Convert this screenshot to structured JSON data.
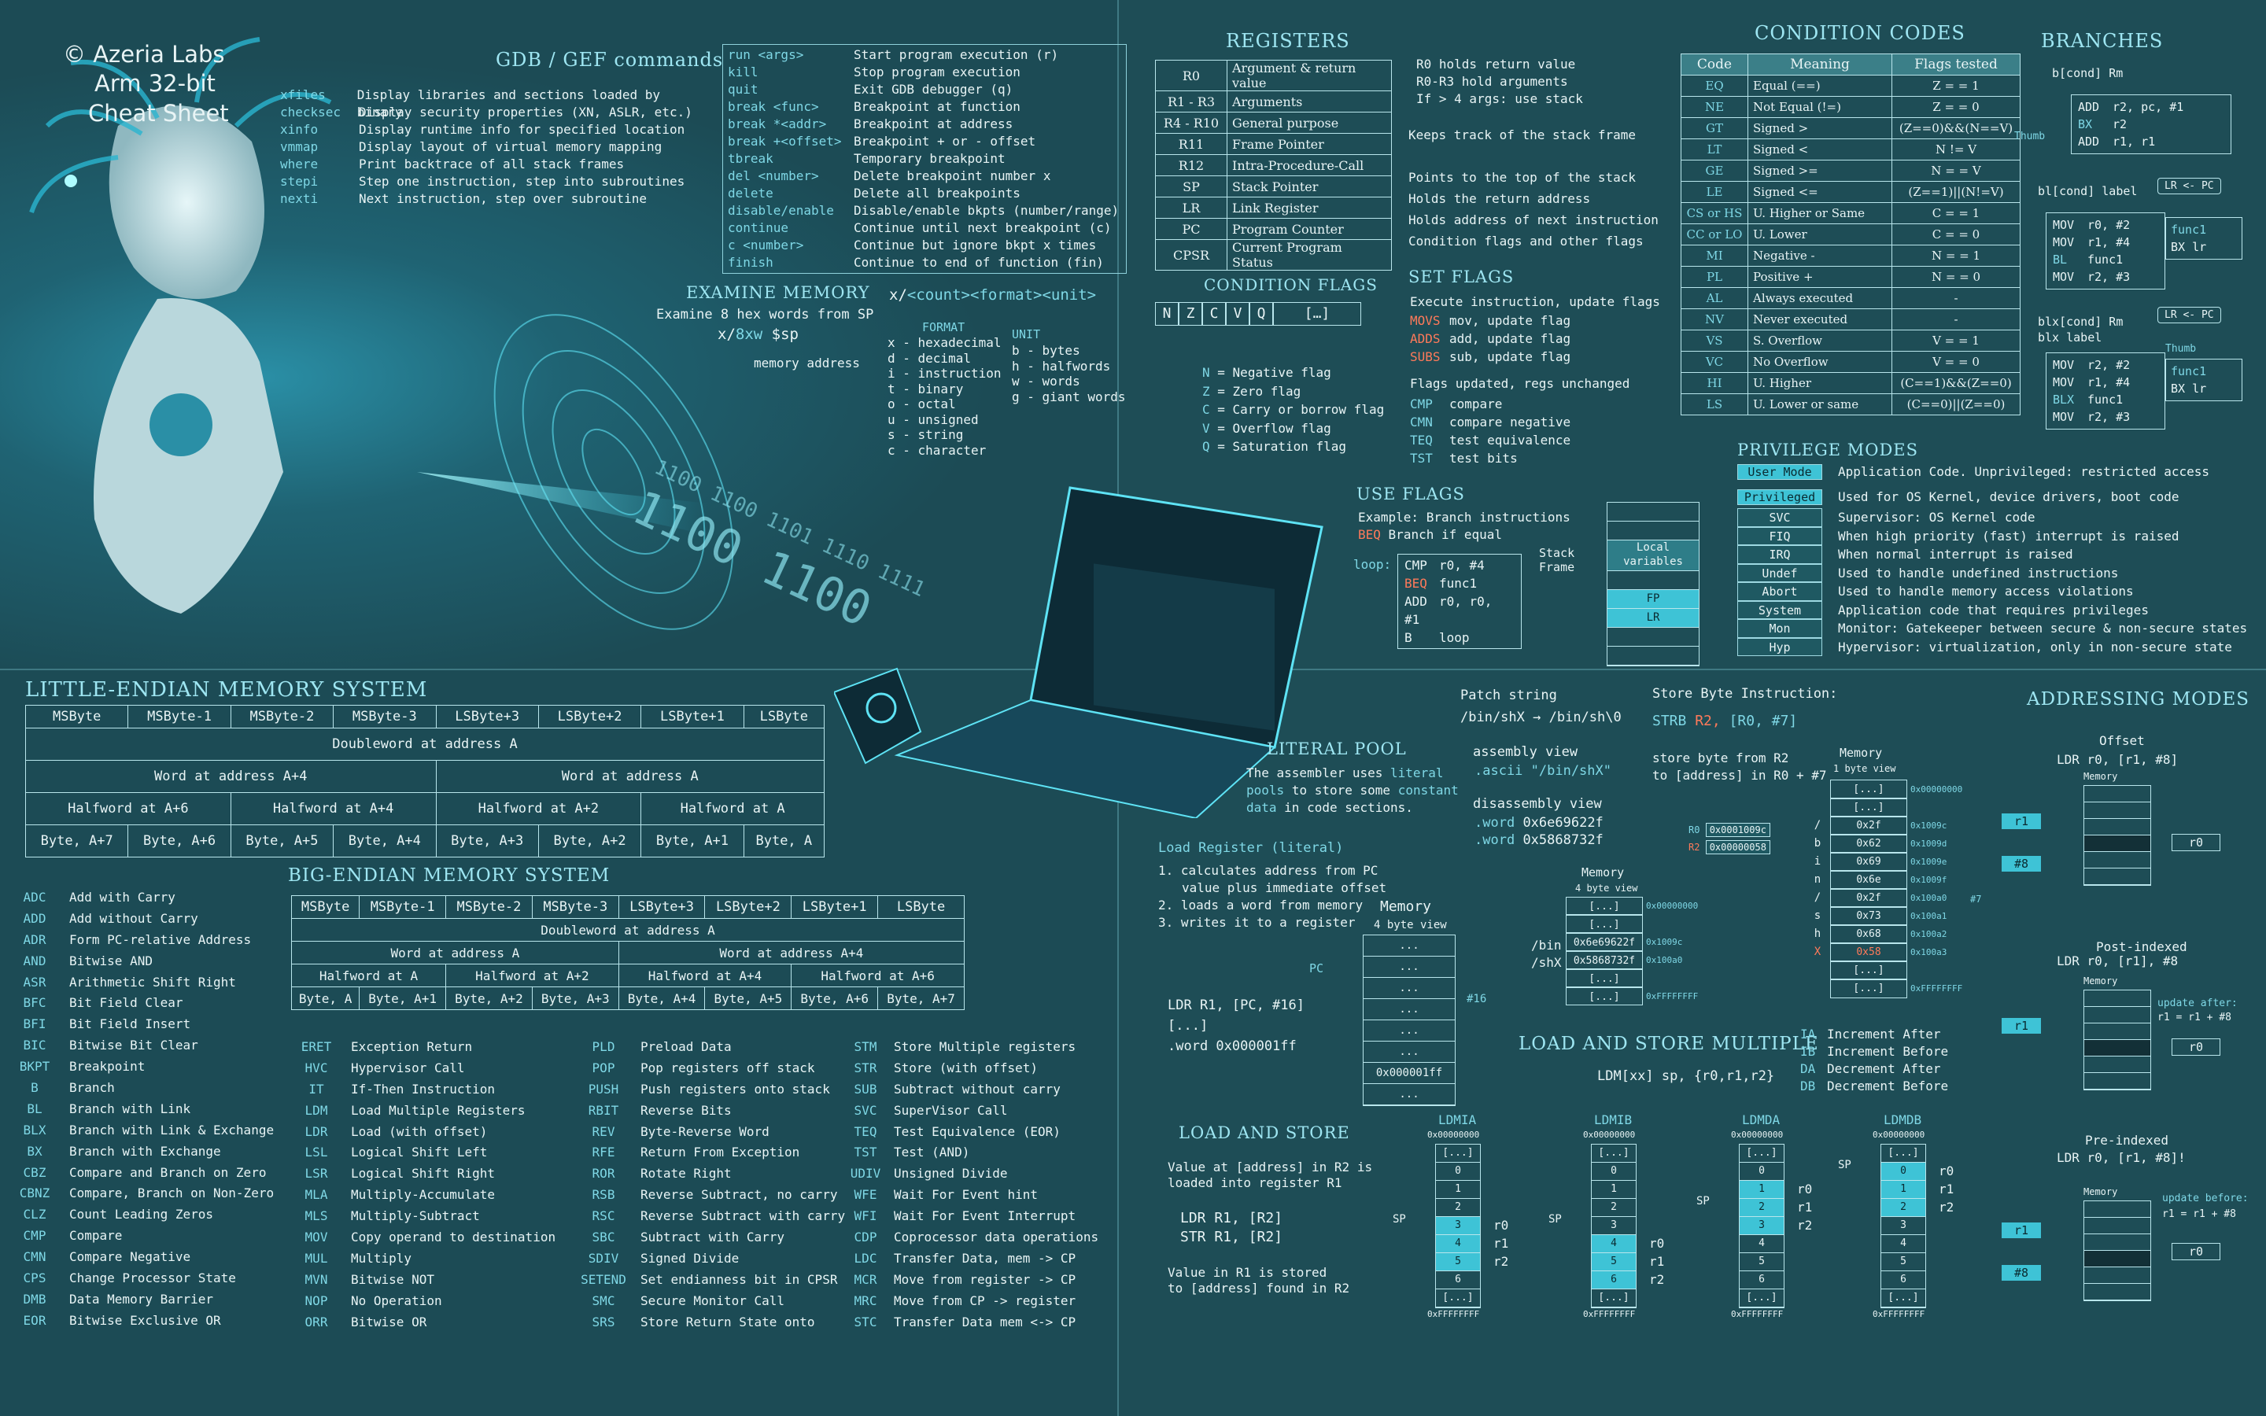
{
  "header": {
    "brand": "© Azeria Labs",
    "title1": "Arm 32-bit",
    "title2": "Cheat Sheet"
  },
  "gdb": {
    "title": "GDB / GEF commands",
    "info": [
      [
        "xfiles",
        "Display libraries and sections loaded by binary"
      ],
      [
        "checksec",
        "Display security properties (XN, ASLR, etc.)"
      ],
      [
        "xinfo",
        "Display runtime info for specified location"
      ],
      [
        "vmmap",
        "Display layout of virtual memory mapping"
      ],
      [
        "where",
        "Print backtrace of all stack frames"
      ],
      [
        "stepi",
        "Step one instruction, step into subroutines"
      ],
      [
        "nexti",
        "Next instruction, step over subroutine"
      ]
    ],
    "cmds": [
      [
        "run <args>",
        "Start program execution (r)"
      ],
      [
        "kill",
        "Stop program execution"
      ],
      [
        "quit",
        "Exit GDB debugger (q)"
      ],
      [
        "break <func>",
        "Breakpoint at function"
      ],
      [
        "break *<addr>",
        "Breakpoint at address"
      ],
      [
        "break +<offset>",
        "Breakpoint + or - offset"
      ],
      [
        "tbreak",
        "Temporary breakpoint"
      ],
      [
        "del <number>",
        "Delete breakpoint number x"
      ],
      [
        "delete",
        "Delete all breakpoints"
      ],
      [
        "disable/enable",
        "Disable/enable bkpts (number/range)"
      ],
      [
        "continue",
        "Continue until next breakpoint (c)"
      ],
      [
        "c <number>",
        "Continue but ignore bkpt x times"
      ],
      [
        "finish",
        "Continue to end of function (fin)"
      ]
    ]
  },
  "examine": {
    "title": "Examine memory",
    "desc": "Examine 8 hex words from SP",
    "cmd_a": "x/",
    "cmd_b": "8xw",
    "cmd_c": " $sp",
    "addr_note": "memory address",
    "syntax_a": "x/",
    "syntax_b": "<count>",
    "syntax_c": "<format>",
    "syntax_d": "<unit>",
    "format_label": "FORMAT",
    "unit_label": "UNIT",
    "formats": [
      "x - hexadecimal",
      "d - decimal",
      "i - instruction",
      "t - binary",
      "o - octal",
      "u - unsigned",
      "s - string",
      "c - character"
    ],
    "units": [
      "b - bytes",
      "h - halfwords",
      "w - words",
      "g - giant words"
    ]
  },
  "registers": {
    "title": "Registers",
    "rows": [
      [
        "R0",
        "Argument & return value"
      ],
      [
        "R1 - R3",
        "Arguments"
      ],
      [
        "R4 - R10",
        "General purpose"
      ],
      [
        "R11",
        "Frame Pointer"
      ],
      [
        "R12",
        "Intra-Procedure-Call"
      ],
      [
        "SP",
        "Stack Pointer"
      ],
      [
        "LR",
        "Link Register"
      ],
      [
        "PC",
        "Program Counter"
      ],
      [
        "CPSR",
        "Current Program Status"
      ]
    ],
    "notes": [
      "R0 holds return value",
      "R0-R3 hold arguments",
      "If > 4 args: use stack",
      "Keeps track of the stack frame",
      "Points to the top of the stack",
      "Holds the return address",
      "Holds address of next instruction",
      "Condition flags and other flags"
    ]
  },
  "cond_flags": {
    "title": "Condition flags",
    "bits": [
      "N",
      "Z",
      "C",
      "V",
      "Q"
    ],
    "rest": "[…]",
    "items": [
      [
        "N",
        "= Negative flag"
      ],
      [
        "Z",
        "= Zero flag"
      ],
      [
        "C",
        "= Carry or borrow flag"
      ],
      [
        "V",
        "= Overflow flag"
      ],
      [
        "Q",
        "= Saturation flag"
      ]
    ]
  },
  "set_flags": {
    "title": "Set flags",
    "desc": "Execute instruction, update flags",
    "rows": [
      [
        "MOVS",
        "mov, update flag"
      ],
      [
        "ADDS",
        "add, update flag"
      ],
      [
        "SUBS",
        "sub, update flag"
      ]
    ],
    "desc2": "Flags updated, regs unchanged",
    "rows2": [
      [
        "CMP",
        "compare"
      ],
      [
        "CMN",
        "compare negative"
      ],
      [
        "TEQ",
        "test equivalence"
      ],
      [
        "TST",
        "test bits"
      ]
    ]
  },
  "use_flags": {
    "title": "Use flags",
    "desc": "Example: Branch instructions",
    "beq_k": "BEQ",
    "beq_v": "Branch if equal",
    "loop": "loop:",
    "code": [
      [
        "CMP",
        "r0, #4"
      ],
      [
        "BEQ",
        "func1"
      ],
      [
        "ADD",
        "r0, r0, #1"
      ],
      [
        "B",
        "loop"
      ]
    ],
    "stack_frame": "Stack Frame",
    "local": "Local variables",
    "fp": "FP",
    "lr": "LR"
  },
  "cond_codes": {
    "title": "Condition codes",
    "headers": [
      "Code",
      "Meaning",
      "Flags tested"
    ],
    "rows": [
      [
        "EQ",
        "Equal (==)",
        "Z = = 1"
      ],
      [
        "NE",
        "Not Equal (!=)",
        "Z = = 0"
      ],
      [
        "GT",
        "Signed >",
        "(Z==0)&&(N==V)"
      ],
      [
        "LT",
        "Signed <",
        "N != V"
      ],
      [
        "GE",
        "Signed >=",
        "N = = V"
      ],
      [
        "LE",
        "Signed <=",
        "(Z==1)||(N!=V)"
      ],
      [
        "CS or HS",
        "U. Higher or Same",
        "C = = 1"
      ],
      [
        "CC or LO",
        "U. Lower",
        "C = = 0"
      ],
      [
        "MI",
        "Negative -",
        "N = = 1"
      ],
      [
        "PL",
        "Positive +",
        "N = = 0"
      ],
      [
        "AL",
        "Always executed",
        "-"
      ],
      [
        "NV",
        "Never executed",
        "-"
      ],
      [
        "VS",
        "S. Overflow",
        "V = = 1"
      ],
      [
        "VC",
        "No Overflow",
        "V = = 0"
      ],
      [
        "HI",
        "U. Higher",
        "(C==1)&&(Z==0)"
      ],
      [
        "LS",
        "U. Lower or same",
        "(C==0)||(Z==0)"
      ]
    ]
  },
  "branches": {
    "title": "Branches",
    "b1": "b[cond] Rm",
    "thumb": "Thumb",
    "b1_code": [
      [
        "ADD",
        "r2, pc, #1"
      ],
      [
        "BX",
        "r2"
      ],
      [
        "ADD",
        "r1, r1"
      ]
    ],
    "b2": "bl[cond] label",
    "b2_note": "LR <- PC",
    "b2_code": [
      [
        "MOV",
        "r0, #2"
      ],
      [
        "MOV",
        "r1, #4"
      ],
      [
        "BL",
        "func1"
      ],
      [
        "MOV",
        "r2, #3"
      ]
    ],
    "func_a": "func1",
    "func_b": "BX  lr",
    "b3a": "blx[cond] Rm",
    "b3b": "blx      label",
    "b3_note": "LR <- PC",
    "thumb2": "Thumb",
    "b3_code": [
      [
        "MOV",
        "r2, #2"
      ],
      [
        "MOV",
        "r1, #4"
      ],
      [
        "BLX",
        "func1"
      ],
      [
        "MOV",
        "r2, #3"
      ]
    ]
  },
  "privilege": {
    "title": "Privilege modes",
    "user": [
      "User Mode",
      "Application Code. Unprivileged: restricted access"
    ],
    "priv": [
      "Privileged",
      "Used for OS Kernel, device drivers, boot code"
    ],
    "rows": [
      [
        "SVC",
        "Supervisor: OS Kernel code"
      ],
      [
        "FIQ",
        "When high priority (fast) interrupt is raised"
      ],
      [
        "IRQ",
        "When normal interrupt is raised"
      ],
      [
        "Undef",
        "Used to handle undefined instructions"
      ],
      [
        "Abort",
        "Used to handle memory access violations"
      ],
      [
        "System",
        "Application code that requires privileges"
      ],
      [
        "Mon",
        "Monitor: Gatekeeper between secure & non-secure states"
      ],
      [
        "Hyp",
        "Hypervisor: virtualization, only in non-secure state"
      ]
    ]
  },
  "little": {
    "title": "Little-endian memory system",
    "bytes": [
      "MSByte",
      "MSByte-1",
      "MSByte-2",
      "MSByte-3",
      "LSByte+3",
      "LSByte+2",
      "LSByte+1",
      "LSByte"
    ],
    "dw": "Doubleword at address A",
    "words": [
      "Word at address A+4",
      "Word at address A"
    ],
    "halves": [
      "Halfword at A+6",
      "Halfword at A+4",
      "Halfword at A+2",
      "Halfword at A"
    ],
    "byteaddr": [
      "Byte, A+7",
      "Byte, A+6",
      "Byte, A+5",
      "Byte, A+4",
      "Byte, A+3",
      "Byte, A+2",
      "Byte, A+1",
      "Byte, A"
    ]
  },
  "big": {
    "title": "Big-endian memory system",
    "bytes": [
      "MSByte",
      "MSByte-1",
      "MSByte-2",
      "MSByte-3",
      "LSByte+3",
      "LSByte+2",
      "LSByte+1",
      "LSByte"
    ],
    "dw": "Doubleword at address A",
    "words": [
      "Word at address A",
      "Word at address A+4"
    ],
    "halves": [
      "Halfword at A",
      "Halfword at A+2",
      "Halfword at A+4",
      "Halfword at A+6"
    ],
    "byteaddr": [
      "Byte, A",
      "Byte, A+1",
      "Byte, A+2",
      "Byte, A+3",
      "Byte, A+4",
      "Byte, A+5",
      "Byte, A+6",
      "Byte, A+7"
    ]
  },
  "instr1": [
    [
      "ADC",
      "Add with Carry"
    ],
    [
      "ADD",
      "Add without Carry"
    ],
    [
      "ADR",
      "Form PC-relative Address"
    ],
    [
      "AND",
      "Bitwise AND"
    ],
    [
      "ASR",
      "Arithmetic Shift Right"
    ],
    [
      "BFC",
      "Bit Field Clear"
    ],
    [
      "BFI",
      "Bit Field Insert"
    ],
    [
      "BIC",
      "Bitwise Bit Clear"
    ],
    [
      "BKPT",
      "Breakpoint"
    ],
    [
      "B",
      "Branch"
    ],
    [
      "BL",
      "Branch with Link"
    ],
    [
      "BLX",
      "Branch with Link & Exchange"
    ],
    [
      "BX",
      "Branch with Exchange"
    ],
    [
      "CBZ",
      "Compare and Branch on Zero"
    ],
    [
      "CBNZ",
      "Compare, Branch on Non-Zero"
    ],
    [
      "CLZ",
      "Count Leading Zeros"
    ],
    [
      "CMP",
      "Compare"
    ],
    [
      "CMN",
      "Compare Negative"
    ],
    [
      "CPS",
      "Change Processor State"
    ],
    [
      "DMB",
      "Data Memory Barrier"
    ],
    [
      "EOR",
      "Bitwise Exclusive OR"
    ]
  ],
  "instr2": [
    [
      "ERET",
      "Exception Return"
    ],
    [
      "HVC",
      "Hypervisor Call"
    ],
    [
      "IT",
      "If-Then Instruction"
    ],
    [
      "LDM",
      "Load Multiple Registers"
    ],
    [
      "LDR",
      "Load (with offset)"
    ],
    [
      "LSL",
      "Logical Shift Left"
    ],
    [
      "LSR",
      "Logical Shift Right"
    ],
    [
      "MLA",
      "Multiply-Accumulate"
    ],
    [
      "MLS",
      "Multiply-Subtract"
    ],
    [
      "MOV",
      "Copy operand to destination"
    ],
    [
      "MUL",
      "Multiply"
    ],
    [
      "MVN",
      "Bitwise NOT"
    ],
    [
      "NOP",
      "No Operation"
    ],
    [
      "ORR",
      "Bitwise OR"
    ]
  ],
  "instr3": [
    [
      "PLD",
      "Preload Data"
    ],
    [
      "POP",
      "Pop registers off stack"
    ],
    [
      "PUSH",
      "Push registers onto stack"
    ],
    [
      "RBIT",
      "Reverse Bits"
    ],
    [
      "REV",
      "Byte-Reverse Word"
    ],
    [
      "RFE",
      "Return From Exception"
    ],
    [
      "ROR",
      "Rotate Right"
    ],
    [
      "RSB",
      "Reverse Subtract, no carry"
    ],
    [
      "RSC",
      "Reverse Subtract with carry"
    ],
    [
      "SBC",
      "Subtract with Carry"
    ],
    [
      "SDIV",
      "Signed Divide"
    ],
    [
      "SETEND",
      "Set endianness bit in CPSR"
    ],
    [
      "SMC",
      "Secure Monitor Call"
    ],
    [
      "SRS",
      "Store Return State onto"
    ]
  ],
  "instr4": [
    [
      "STM",
      "Store Multiple registers"
    ],
    [
      "STR",
      "Store (with offset)"
    ],
    [
      "SUB",
      "Subtract without carry"
    ],
    [
      "SVC",
      "SuperVisor Call"
    ],
    [
      "TEQ",
      "Test Equivalence (EOR)"
    ],
    [
      "TST",
      "Test (AND)"
    ],
    [
      "UDIV",
      "Unsigned Divide"
    ],
    [
      "WFE",
      "Wait For Event hint"
    ],
    [
      "WFI",
      "Wait For Event Interrupt"
    ],
    [
      "CDP",
      "Coprocessor data operations"
    ],
    [
      "LDC",
      "Transfer Data, mem -> CP"
    ],
    [
      "MCR",
      "Move from register -> CP"
    ],
    [
      "MRC",
      "Move from CP -> register"
    ],
    [
      "STC",
      "Transfer Data mem <-> CP"
    ]
  ],
  "literal": {
    "title": "Literal pool",
    "desc1": "The assembler uses",
    "desc2": "literal pools",
    "desc3": "to store some",
    "desc4": "constant data",
    "desc5": "in code sections.",
    "patch": "Patch string",
    "patch_a": "/bin/shX",
    "patch_b": "/bin/sh\\0",
    "asm": "assembly view",
    "asm_v": ".ascii \"/bin/shX\"",
    "disasm": "disassembly view",
    "w1k": ".word",
    "w1v": "0x6e69622f",
    "w2k": ".word",
    "w2v": "0x5868732f",
    "ldr_title": "Load Register (literal)",
    "steps": [
      "1. calculates address from PC",
      "value plus immediate offset",
      "2. loads a word from memory",
      "3. writes it to a register"
    ],
    "memory": "Memory",
    "view4": "4 byte view",
    "pc": "PC",
    "ldr_code": "LDR  R1, [PC, #16]",
    "dots": "[...]",
    "word": ".word  0x000001ff",
    "off16": "#16",
    "cells": [
      "...",
      "...",
      "...",
      "...",
      "...",
      "...",
      "0x000001ff",
      "..."
    ],
    "mem2_title": "Memory",
    "mem2_view": "4 byte view",
    "mem2": [
      [
        "[...]",
        "0x00000000"
      ],
      [
        "[...]",
        ""
      ],
      [
        "0x6e69622f",
        "0x1009c"
      ],
      [
        "0x5868732f",
        "0x100a0"
      ],
      [
        "[...]",
        ""
      ],
      [
        "[...]",
        "0xFFFFFFFF"
      ]
    ],
    "bin": "/bin",
    "shx": "/shX"
  },
  "store_byte": {
    "title": "Store Byte Instruction:",
    "code_a": "STRB",
    "code_b": "R2,",
    "code_c": "[R0, #7]",
    "desc1": "store byte from R2",
    "desc2": "to [address] in R0 + #7",
    "memory": "Memory",
    "view": "1 byte view",
    "r0": "R0",
    "r0v": "0x0001009c",
    "r2": "R2",
    "r2v": "0x00000058",
    "off": "#7",
    "cells": [
      [
        "[...]",
        "0x00000000",
        ""
      ],
      [
        "[...]",
        "",
        ""
      ],
      [
        "0x2f",
        "0x1009c",
        "/"
      ],
      [
        "0x62",
        "0x1009d",
        "b"
      ],
      [
        "0x69",
        "0x1009e",
        "i"
      ],
      [
        "0x6e",
        "0x1009f",
        "n"
      ],
      [
        "0x2f",
        "0x100a0",
        "/"
      ],
      [
        "0x73",
        "0x100a1",
        "s"
      ],
      [
        "0x68",
        "0x100a2",
        "h"
      ],
      [
        "0x58",
        "0x100a3",
        "X"
      ],
      [
        "[...]",
        "",
        ""
      ],
      [
        "[...]",
        "0xFFFFFFFF",
        ""
      ]
    ]
  },
  "addressing": {
    "title": "Addressing Modes",
    "offset": "Offset",
    "offset_code": "LDR r0, [r1, #8]",
    "post": "Post-indexed",
    "post_code": "LDR r0, [r1], #8",
    "post_note": "update after:",
    "post_note2": "r1 = r1 + #8",
    "pre": "Pre-indexed",
    "pre_code": "LDR r0, [r1, #8]!",
    "pre_note": "update before:",
    "pre_note2": "r1 = r1 + #8",
    "memory": "Memory",
    "r1": "r1",
    "r0": "r0",
    "n8": "#8"
  },
  "load_store": {
    "title": "Load and Store",
    "desc1": "Value at [address] in R2 is",
    "desc2": "loaded into register R1",
    "ldr": "LDR  R1, [R2]",
    "str": "STR  R1, [R2]",
    "desc3": "Value in R1 is stored",
    "desc4": "to [address] found in R2"
  },
  "ldm": {
    "title": "Load and Store Multiple",
    "code": "LDM[xx] sp, {r0,r1,r2}",
    "modes": [
      [
        "IA",
        "Increment After"
      ],
      [
        "IB",
        "Increment Before"
      ],
      [
        "DA",
        "Decrement After"
      ],
      [
        "DB",
        "Decrement Before"
      ]
    ],
    "cols": [
      {
        "name": "LDMIA",
        "fill": [
          3,
          4,
          5
        ]
      },
      {
        "name": "LDMIB",
        "fill": [
          4,
          5,
          6
        ]
      },
      {
        "name": "LDMDA",
        "fill": [
          1,
          2,
          3
        ]
      },
      {
        "name": "LDMDB",
        "fill": [
          0,
          1,
          2
        ]
      }
    ],
    "cells": [
      "[...]",
      "0",
      "1",
      "2",
      "3",
      "4",
      "5",
      "6",
      "[...]"
    ],
    "top": "0x00000000",
    "bot": "0xFFFFFFFF",
    "sp": "SP",
    "regs": [
      "r0",
      "r1",
      "r2"
    ]
  }
}
